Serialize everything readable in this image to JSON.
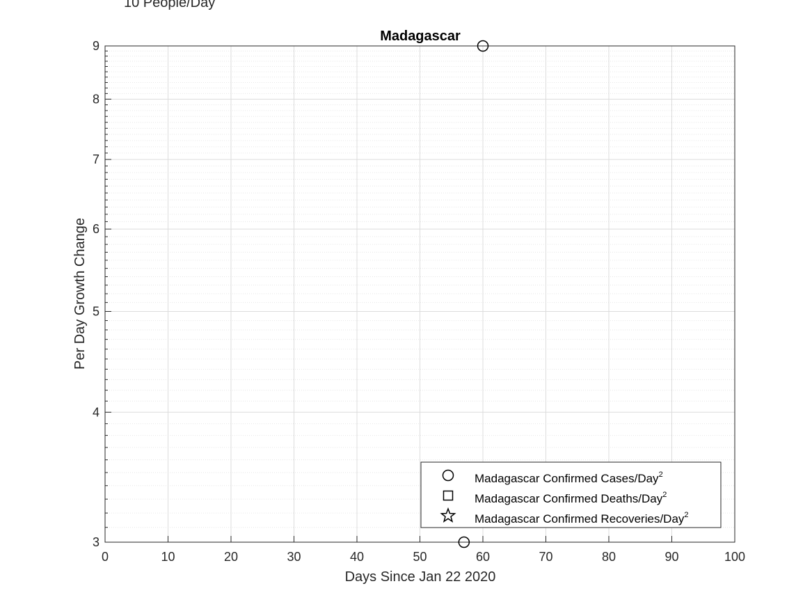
{
  "chart_data": {
    "type": "scatter",
    "title": "Madagascar",
    "corner_label": "10 People/Day",
    "xlabel": "Days Since Jan 22 2020",
    "ylabel": "Per Day Growth Change",
    "xlim": [
      0,
      100
    ],
    "ylim": [
      3,
      9
    ],
    "yscale": "log",
    "x_ticks": [
      0,
      10,
      20,
      30,
      40,
      50,
      60,
      70,
      80,
      90,
      100
    ],
    "y_ticks": [
      3,
      4,
      5,
      6,
      7,
      8,
      9
    ],
    "grid": true,
    "legend_position": "bottom-right",
    "series": [
      {
        "name": "Madagascar Confirmed Cases/Day",
        "superscript": "2",
        "marker": "circle",
        "points": [
          {
            "x": 57,
            "y": 3
          },
          {
            "x": 60,
            "y": 9
          }
        ]
      },
      {
        "name": "Madagascar Confirmed Deaths/Day",
        "superscript": "2",
        "marker": "square",
        "points": []
      },
      {
        "name": "Madagascar Confirmed Recoveries/Day",
        "superscript": "2",
        "marker": "star",
        "points": []
      }
    ],
    "colors": {
      "axis": "#262626",
      "grid_major": "#dcdcdc",
      "grid_minor": "#e6e6e6",
      "marker": "#000000"
    }
  }
}
